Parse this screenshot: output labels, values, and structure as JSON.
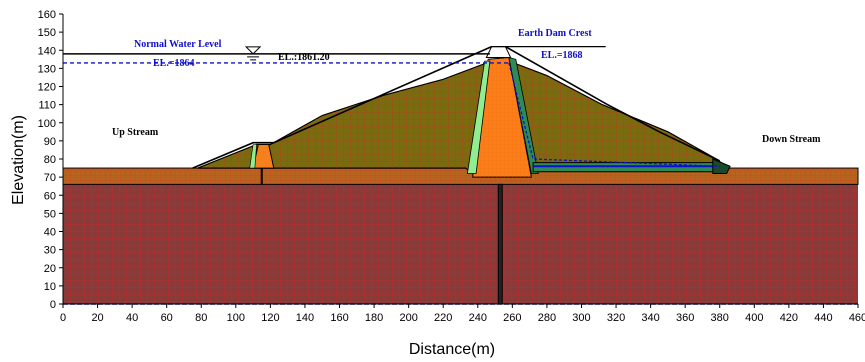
{
  "chart_data": {
    "type": "diagram",
    "xlabel": "Distance(m)",
    "ylabel": "Elevation(m)",
    "xlim": [
      0,
      460
    ],
    "ylim": [
      0,
      160
    ],
    "x_ticks": [
      0,
      20,
      40,
      60,
      80,
      100,
      120,
      140,
      160,
      180,
      200,
      220,
      240,
      260,
      280,
      300,
      320,
      340,
      360,
      380,
      400,
      420,
      440,
      460
    ],
    "y_ticks": [
      0,
      10,
      20,
      30,
      40,
      50,
      60,
      70,
      80,
      90,
      100,
      110,
      120,
      130,
      140,
      150,
      160
    ],
    "annotations": {
      "normal_water_level": "Normal Water Level",
      "water_el": "EL.:1861.20",
      "el_1864": "EL.=1864",
      "crest": "Earth Dam Crest",
      "el_1868": "EL.=1868",
      "upstream": "Up Stream",
      "downstream": "Down Stream"
    },
    "water_level_elev": 138,
    "crest_elev": 142,
    "foundation_top_elev": 66,
    "colors": {
      "foundation": "#8b3a3a",
      "ground_layer": "#b5651d",
      "shell": "#7a6a10",
      "core": "#f7801e",
      "filter": "#90ee90",
      "mesh": "#ff2020",
      "blue_line": "#1010cc"
    }
  }
}
